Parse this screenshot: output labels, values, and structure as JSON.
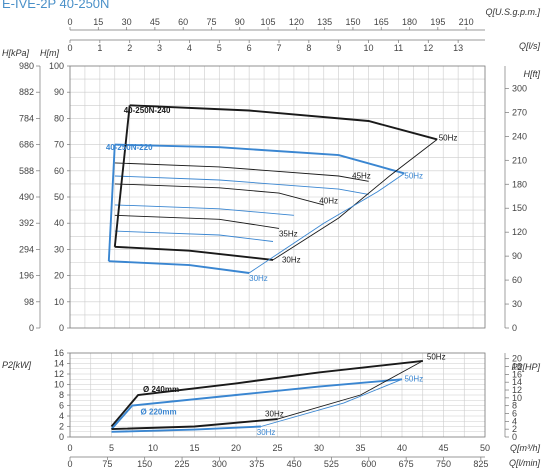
{
  "page_title": "E-IVE-2P 40-250N",
  "colors": {
    "black_series": "#1a1a1a",
    "blue_series": "#3a86d1",
    "grid": "#cccccc",
    "title": "#4a90c8"
  },
  "chart_data": [
    {
      "type": "line",
      "name": "head-chart",
      "x_axes": [
        {
          "label": "Q[U.S.g.p.m.]",
          "ticks": [
            "0",
            "15",
            "30",
            "45",
            "60",
            "75",
            "90",
            "105",
            "120",
            "135",
            "150",
            "165",
            "180",
            "195",
            "210"
          ],
          "range": [
            0,
            220
          ]
        },
        {
          "label": "Q[l/s]",
          "ticks": [
            "0",
            "1",
            "2",
            "3",
            "4",
            "5",
            "6",
            "7",
            "8",
            "9",
            "10",
            "11",
            "12",
            "13"
          ],
          "range": [
            0,
            13.9
          ]
        }
      ],
      "y_axes": [
        {
          "label": "H[kPa]",
          "ticks": [
            "0",
            "98",
            "196",
            "294",
            "392",
            "490",
            "588",
            "686",
            "784",
            "882",
            "980"
          ]
        },
        {
          "label": "H[m]",
          "ticks": [
            "0",
            "10",
            "20",
            "30",
            "40",
            "50",
            "60",
            "70",
            "80",
            "90",
            "100"
          ],
          "range": [
            0,
            100
          ]
        },
        {
          "label": "H[ft]",
          "ticks": [
            "0",
            "30",
            "60",
            "90",
            "120",
            "150",
            "180",
            "210",
            "240",
            "270",
            "300"
          ]
        }
      ],
      "grid": true,
      "series": [
        {
          "name": "40-250N-240",
          "color": "black",
          "width": "bold",
          "points": [
            [
              2,
              85
            ],
            [
              6,
              83
            ],
            [
              10,
              79
            ],
            [
              12.3,
              72
            ]
          ]
        },
        {
          "name": "40-250N-220",
          "color": "blue",
          "width": "bold",
          "points": [
            [
              1.5,
              70
            ],
            [
              5,
              69
            ],
            [
              9,
              66
            ],
            [
              11.2,
              59
            ]
          ]
        },
        {
          "name": "black-45hz",
          "color": "black",
          "points": [
            [
              1.5,
              63
            ],
            [
              5,
              61.5
            ],
            [
              9,
              58
            ],
            [
              10,
              56
            ]
          ]
        },
        {
          "name": "black-40hz",
          "color": "black",
          "points": [
            [
              1.5,
              55
            ],
            [
              5,
              53.5
            ],
            [
              7,
              51.5
            ],
            [
              8.5,
              47
            ]
          ]
        },
        {
          "name": "black-35hz",
          "color": "black",
          "points": [
            [
              1.5,
              43
            ],
            [
              5,
              41.5
            ],
            [
              7,
              38
            ]
          ]
        },
        {
          "name": "black-30hz",
          "color": "black",
          "points": [
            [
              1.5,
              31
            ],
            [
              4,
              29.5
            ],
            [
              6.8,
              26
            ]
          ]
        },
        {
          "name": "blue-45hz",
          "color": "blue",
          "points": [
            [
              1.5,
              58
            ],
            [
              5,
              56.5
            ],
            [
              9,
              53
            ],
            [
              10,
              51
            ]
          ]
        },
        {
          "name": "blue-40hz",
          "color": "blue",
          "points": [
            [
              1.5,
              47
            ],
            [
              5,
              45.5
            ],
            [
              7.5,
              43
            ]
          ]
        },
        {
          "name": "blue-35hz",
          "color": "blue",
          "points": [
            [
              1.5,
              37
            ],
            [
              5,
              35.5
            ],
            [
              6.8,
              33
            ]
          ]
        },
        {
          "name": "blue-30hz",
          "color": "blue",
          "points": [
            [
              1.3,
              25.5
            ],
            [
              4,
              24
            ],
            [
              6,
              21
            ]
          ]
        },
        {
          "name": "black-left-edge",
          "color": "black",
          "width": "bold",
          "points": [
            [
              2,
              85
            ],
            [
              1.5,
              31
            ]
          ]
        },
        {
          "name": "blue-left-edge",
          "color": "blue",
          "width": "bold",
          "points": [
            [
              1.5,
              70
            ],
            [
              1.3,
              25.5
            ]
          ]
        },
        {
          "name": "black-bottom-edge",
          "color": "black",
          "width": "bold",
          "points": [
            [
              1.5,
              31
            ],
            [
              4,
              29.5
            ],
            [
              6.8,
              26
            ]
          ]
        },
        {
          "name": "blue-bottom-edge",
          "color": "blue",
          "width": "bold",
          "points": [
            [
              1.3,
              25.5
            ],
            [
              4,
              24
            ],
            [
              6,
              21
            ]
          ]
        },
        {
          "name": "black-right-edge",
          "color": "black",
          "points": [
            [
              6.8,
              26
            ],
            [
              9,
              42
            ],
            [
              10.7,
              58
            ],
            [
              12.3,
              72
            ]
          ]
        },
        {
          "name": "blue-right-edge",
          "color": "blue",
          "points": [
            [
              6,
              21
            ],
            [
              8.5,
              40
            ],
            [
              10.3,
              52
            ],
            [
              11.2,
              59
            ]
          ]
        }
      ],
      "annotations": [
        {
          "text": "40-250N-240",
          "x": 1.8,
          "y": 82,
          "color": "black",
          "bold": true
        },
        {
          "text": "40-250N-220",
          "x": 1.2,
          "y": 68,
          "color": "blue",
          "bold": true
        },
        {
          "text": "50Hz",
          "x": 12.35,
          "y": 71.5,
          "color": "black"
        },
        {
          "text": "45Hz",
          "x": 9.45,
          "y": 57,
          "color": "black"
        },
        {
          "text": "50Hz",
          "x": 11.2,
          "y": 57,
          "color": "blue"
        },
        {
          "text": "40Hz",
          "x": 8.35,
          "y": 47.5,
          "color": "black"
        },
        {
          "text": "35Hz",
          "x": 7.0,
          "y": 35,
          "color": "black"
        },
        {
          "text": "30Hz",
          "x": 7.1,
          "y": 25,
          "color": "black"
        },
        {
          "text": "30Hz",
          "x": 6.0,
          "y": 18,
          "color": "blue"
        }
      ]
    },
    {
      "type": "line",
      "name": "power-chart",
      "x_axes": [
        {
          "label": "Q[m³/h]",
          "ticks": [
            "0",
            "5",
            "10",
            "15",
            "20",
            "25",
            "30",
            "35",
            "40",
            "45",
            "50"
          ],
          "range": [
            0,
            50
          ]
        },
        {
          "label": "Q[l/min]",
          "ticks": [
            "0",
            "75",
            "150",
            "225",
            "300",
            "375",
            "450",
            "525",
            "600",
            "675",
            "750",
            "825"
          ]
        }
      ],
      "y_axes": [
        {
          "label": "P2[kW]",
          "ticks": [
            "0",
            "2",
            "4",
            "6",
            "8",
            "10",
            "12",
            "14",
            "16"
          ],
          "range": [
            0,
            16
          ]
        },
        {
          "label": "P2[HP]",
          "ticks": [
            "0",
            "2",
            "4",
            "6",
            "8",
            "10",
            "12",
            "14",
            "16",
            "18",
            "20"
          ]
        }
      ],
      "grid": true,
      "series": [
        {
          "name": "240-50hz",
          "color": "black",
          "width": "bold",
          "points": [
            [
              5,
              2
            ],
            [
              8.2,
              8
            ],
            [
              20,
              10.2
            ],
            [
              30,
              12.3
            ],
            [
              42.5,
              14.5
            ]
          ]
        },
        {
          "name": "220-50hz",
          "color": "blue",
          "width": "bold",
          "points": [
            [
              5,
              1.5
            ],
            [
              7.5,
              6
            ],
            [
              20,
              8
            ],
            [
              30,
              9.6
            ],
            [
              40,
              11
            ]
          ]
        },
        {
          "name": "240-30hz",
          "color": "black",
          "width": "bold",
          "points": [
            [
              5,
              1.5
            ],
            [
              15,
              2
            ],
            [
              25,
              3.4
            ]
          ]
        },
        {
          "name": "220-30hz",
          "color": "blue",
          "width": "bold",
          "points": [
            [
              5,
              1
            ],
            [
              15,
              1.4
            ],
            [
              23,
              2
            ]
          ]
        },
        {
          "name": "black-thin-a",
          "color": "black",
          "points": [
            [
              25,
              3.4
            ],
            [
              35,
              8
            ],
            [
              42.5,
              14.5
            ]
          ]
        },
        {
          "name": "blue-thin-a",
          "color": "blue",
          "points": [
            [
              23,
              2
            ],
            [
              33,
              6.5
            ],
            [
              40,
              11
            ]
          ]
        }
      ],
      "annotations": [
        {
          "text": "Ø 240mm",
          "x": 8.8,
          "y": 8.6,
          "color": "black",
          "bold": true
        },
        {
          "text": "Ø 220mm",
          "x": 8.5,
          "y": 4.3,
          "color": "blue",
          "bold": true
        },
        {
          "text": "50Hz",
          "x": 43,
          "y": 14.8,
          "color": "black"
        },
        {
          "text": "50Hz",
          "x": 40.3,
          "y": 10.6,
          "color": "blue"
        },
        {
          "text": "30Hz",
          "x": 23.5,
          "y": 3.9,
          "color": "black"
        },
        {
          "text": "30Hz",
          "x": 22.5,
          "y": 0.4,
          "color": "blue"
        }
      ]
    }
  ]
}
